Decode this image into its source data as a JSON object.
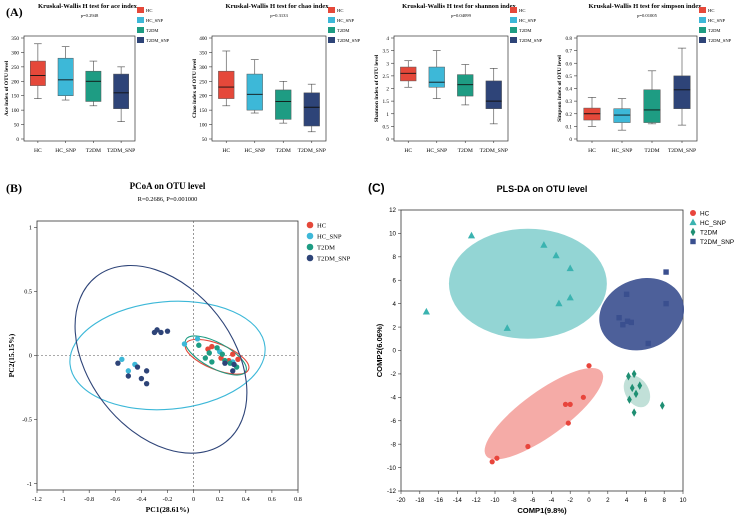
{
  "panel_labels": {
    "a": "(A)",
    "b": "(B)",
    "c": "(C)"
  },
  "colors": {
    "HC": "#E5483A",
    "HC_SNP": "#3DB8D8",
    "T2DM": "#1E9C83",
    "T2DM_SNP": "#2E4478",
    "pls_HC": "#E8453C",
    "pls_HC_SNP": "#3BB3B0",
    "pls_T2DM": "#1F8F73",
    "pls_T2DM_SNP": "#3A4F8F"
  },
  "chart_data": [
    {
      "type": "box",
      "id": "ace",
      "title": "Kruskal-Wallis H test for ace index",
      "pvalue": "p=0.2948",
      "ylabel": "Ace index of OTU level",
      "ylim": [
        0,
        350
      ],
      "yticks": [
        "0",
        "50",
        "100",
        "150",
        "200",
        "250",
        "300",
        "350"
      ],
      "categories": [
        "HC",
        "HC_SNP",
        "T2DM",
        "T2DM_SNP"
      ],
      "legend": [
        "HC",
        "HC_SNP",
        "T2DM",
        "T2DM_SNP"
      ],
      "boxes": [
        {
          "min": 140,
          "q1": 185,
          "median": 220,
          "q3": 270,
          "max": 330
        },
        {
          "min": 135,
          "q1": 150,
          "median": 205,
          "q3": 280,
          "max": 320
        },
        {
          "min": 115,
          "q1": 130,
          "median": 200,
          "q3": 235,
          "max": 270
        },
        {
          "min": 60,
          "q1": 105,
          "median": 160,
          "q3": 225,
          "max": 250
        }
      ]
    },
    {
      "type": "box",
      "id": "chao",
      "title": "Kruskal-Wallis H test for chao index",
      "pvalue": "p=0.3133",
      "ylabel": "Chao index of OTU level",
      "ylim": [
        50,
        400
      ],
      "yticks": [
        "50",
        "100",
        "150",
        "200",
        "250",
        "300",
        "350",
        "400"
      ],
      "categories": [
        "HC",
        "HC_SNP",
        "T2DM",
        "T2DM_SNP"
      ],
      "legend": [
        "HC",
        "HC_SNP",
        "T2DM",
        "T2DM_SNP"
      ],
      "boxes": [
        {
          "min": 165,
          "q1": 190,
          "median": 230,
          "q3": 285,
          "max": 355
        },
        {
          "min": 140,
          "q1": 150,
          "median": 205,
          "q3": 275,
          "max": 325
        },
        {
          "min": 105,
          "q1": 118,
          "median": 180,
          "q3": 220,
          "max": 250
        },
        {
          "min": 75,
          "q1": 95,
          "median": 160,
          "q3": 210,
          "max": 240
        }
      ]
    },
    {
      "type": "box",
      "id": "shannon",
      "title": "Kruskal-Wallis H test for shannon index",
      "pvalue": "p=0.04099",
      "ylabel": "Shannon index of OTU level",
      "ylim": [
        0,
        4
      ],
      "yticks": [
        "0",
        "0.5",
        "1",
        "1.5",
        "2",
        "2.5",
        "3",
        "3.5",
        "4"
      ],
      "categories": [
        "HC",
        "HC_SNP",
        "T2DM",
        "T2DM_SNP"
      ],
      "legend": [
        "HC",
        "HC_SNP",
        "T2DM",
        "T2DM_SNP"
      ],
      "boxes": [
        {
          "min": 2.05,
          "q1": 2.3,
          "median": 2.6,
          "q3": 2.85,
          "max": 3.1
        },
        {
          "min": 1.6,
          "q1": 2.05,
          "median": 2.25,
          "q3": 2.85,
          "max": 3.5
        },
        {
          "min": 1.35,
          "q1": 1.7,
          "median": 2.15,
          "q3": 2.55,
          "max": 2.95
        },
        {
          "min": 0.6,
          "q1": 1.2,
          "median": 1.5,
          "q3": 2.3,
          "max": 2.8
        }
      ]
    },
    {
      "type": "box",
      "id": "simpson",
      "title": "Kruskal-Wallis H test for simpson index",
      "pvalue": "p=0.01005",
      "ylabel": "Simpson index of OTU level",
      "ylim": [
        0,
        0.8
      ],
      "yticks": [
        "0",
        "0.1",
        "0.2",
        "0.3",
        "0.4",
        "0.5",
        "0.6",
        "0.7",
        "0.8"
      ],
      "categories": [
        "HC",
        "HC_SNP",
        "T2DM",
        "T2DM_SNP"
      ],
      "legend": [
        "HC",
        "HC_SNP",
        "T2DM",
        "T2DM_SNP"
      ],
      "boxes": [
        {
          "min": 0.1,
          "q1": 0.15,
          "median": 0.2,
          "q3": 0.245,
          "max": 0.33
        },
        {
          "min": 0.07,
          "q1": 0.13,
          "median": 0.19,
          "q3": 0.24,
          "max": 0.32
        },
        {
          "min": 0.12,
          "q1": 0.13,
          "median": 0.23,
          "q3": 0.39,
          "max": 0.54
        },
        {
          "min": 0.11,
          "q1": 0.24,
          "median": 0.39,
          "q3": 0.5,
          "max": 0.72
        }
      ]
    },
    {
      "type": "scatter",
      "id": "pcoa",
      "title": "PCoA on OTU level",
      "subtitle": "R=0.2686, P=0.001000",
      "xlabel": "PC1(28.61%)",
      "ylabel": "PC2(15.15%)",
      "xlim": [
        -1.2,
        0.8
      ],
      "ylim": [
        -1.05,
        1.05
      ],
      "xticks": [
        "-1.2",
        "-1",
        "-0.8",
        "-0.6",
        "-0.4",
        "-0.2",
        "0",
        "0.2",
        "0.4",
        "0.6",
        "0.8"
      ],
      "yticks": [
        "-1",
        "-0.5",
        "0",
        "0.5",
        "1"
      ],
      "legend": [
        "HC",
        "HC_SNP",
        "T2DM",
        "T2DM_SNP"
      ],
      "series": [
        {
          "name": "HC",
          "points": [
            [
              0.14,
              0.07
            ],
            [
              0.21,
              -0.02
            ],
            [
              0.3,
              0.01
            ],
            [
              0.27,
              -0.04
            ],
            [
              0.34,
              -0.03
            ],
            [
              0.11,
              0.05
            ]
          ]
        },
        {
          "name": "HC_SNP",
          "points": [
            [
              -0.55,
              -0.03
            ],
            [
              -0.45,
              -0.07
            ],
            [
              0.03,
              0.13
            ],
            [
              -0.07,
              0.09
            ],
            [
              0.2,
              0.03
            ],
            [
              0.3,
              -0.05
            ],
            [
              -0.5,
              -0.12
            ]
          ]
        },
        {
          "name": "T2DM",
          "points": [
            [
              0.04,
              0.08
            ],
            [
              0.12,
              0.02
            ],
            [
              0.18,
              0.06
            ],
            [
              0.09,
              -0.02
            ],
            [
              0.14,
              -0.05
            ],
            [
              0.24,
              -0.04
            ],
            [
              0.28,
              -0.06
            ],
            [
              0.33,
              -0.09
            ],
            [
              0.22,
              0.01
            ]
          ]
        },
        {
          "name": "T2DM_SNP",
          "points": [
            [
              -0.58,
              -0.06
            ],
            [
              -0.5,
              -0.16
            ],
            [
              -0.43,
              -0.09
            ],
            [
              -0.4,
              -0.18
            ],
            [
              -0.36,
              -0.22
            ],
            [
              -0.36,
              -0.12
            ],
            [
              -0.3,
              0.18
            ],
            [
              -0.2,
              0.19
            ],
            [
              -0.25,
              0.18
            ],
            [
              -0.28,
              0.2
            ],
            [
              0.24,
              -0.06
            ],
            [
              0.31,
              -0.07
            ],
            [
              0.3,
              -0.12
            ]
          ]
        }
      ],
      "ellipses": [
        {
          "name": "HC",
          "cx": 0.18,
          "cy": -0.01,
          "rx": 0.26,
          "ry": 0.1,
          "angle": -22
        },
        {
          "name": "HC_SNP",
          "cx": -0.2,
          "cy": 0.0,
          "rx": 0.75,
          "ry": 0.42,
          "angle": 5
        },
        {
          "name": "T2DM",
          "cx": 0.17,
          "cy": 0.0,
          "rx": 0.26,
          "ry": 0.1,
          "angle": -28
        },
        {
          "name": "T2DM_SNP",
          "cx": -0.25,
          "cy": -0.03,
          "rx": 0.55,
          "ry": 0.82,
          "angle": 38
        }
      ]
    },
    {
      "type": "scatter",
      "id": "plsda",
      "title": "PLS-DA on OTU level",
      "xlabel": "COMP1(9.8%)",
      "ylabel": "COMP2(6.06%)",
      "xlim": [
        -20,
        10
      ],
      "ylim": [
        -12,
        12
      ],
      "xticks": [
        "-20",
        "-18",
        "-16",
        "-14",
        "-12",
        "-10",
        "-8",
        "-6",
        "-4",
        "-2",
        "0",
        "2",
        "4",
        "6",
        "8",
        "10"
      ],
      "yticks": [
        "-12",
        "-10",
        "-8",
        "-6",
        "-4",
        "-2",
        "0",
        "2",
        "4",
        "6",
        "8",
        "10",
        "12"
      ],
      "legend": [
        "HC",
        "HC_SNP",
        "T2DM",
        "T2DM_SNP"
      ],
      "series": [
        {
          "name": "HC",
          "marker": "circle",
          "points": [
            [
              0,
              -1.3
            ],
            [
              -0.6,
              -4
            ],
            [
              -2,
              -4.6
            ],
            [
              -2.5,
              -4.6
            ],
            [
              -2.2,
              -6.2
            ],
            [
              -6.5,
              -8.2
            ],
            [
              -9.8,
              -9.2
            ],
            [
              -10.3,
              -9.5
            ]
          ]
        },
        {
          "name": "HC_SNP",
          "marker": "triangle",
          "points": [
            [
              -12.5,
              9.8
            ],
            [
              -4.8,
              9
            ],
            [
              -3.5,
              8.1
            ],
            [
              -2,
              7
            ],
            [
              -2,
              4.5
            ],
            [
              -3.2,
              4
            ],
            [
              -17.3,
              3.3
            ],
            [
              -8.7,
              1.9
            ]
          ]
        },
        {
          "name": "T2DM",
          "marker": "diamond",
          "points": [
            [
              4.2,
              -2.2
            ],
            [
              4.8,
              -2
            ],
            [
              4.6,
              -3.2
            ],
            [
              5.4,
              -3
            ],
            [
              5,
              -3.7
            ],
            [
              4.3,
              -4.2
            ],
            [
              4.8,
              -5.3
            ],
            [
              7.8,
              -4.7
            ]
          ]
        },
        {
          "name": "T2DM_SNP",
          "marker": "square",
          "points": [
            [
              4,
              4.8
            ],
            [
              8.2,
              6.7
            ],
            [
              8.2,
              4
            ],
            [
              3.2,
              2.8
            ],
            [
              3.6,
              2.2
            ],
            [
              4.1,
              2.5
            ],
            [
              4.5,
              2.4
            ],
            [
              6.3,
              0.6
            ]
          ]
        }
      ],
      "ellipses": [
        {
          "name": "HC",
          "cx": -4.8,
          "cy": -5.4,
          "rx": 7.6,
          "ry": 1.9,
          "angle": 36
        },
        {
          "name": "HC_SNP",
          "cx": -6.5,
          "cy": 5.7,
          "rx": 8.4,
          "ry": 4.7,
          "angle": 0
        },
        {
          "name": "T2DM",
          "cx": 5.1,
          "cy": -3.5,
          "rx": 1.8,
          "ry": 1.0,
          "angle": -60
        },
        {
          "name": "T2DM_SNP",
          "cx": 5.6,
          "cy": 3.1,
          "rx": 4.6,
          "ry": 3.0,
          "angle": 20
        }
      ]
    }
  ]
}
